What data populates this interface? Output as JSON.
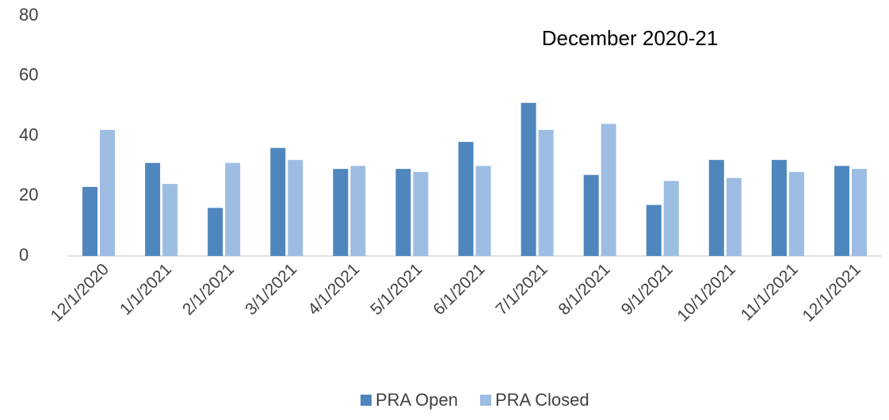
{
  "chart_data": {
    "type": "bar",
    "title": "December 2020-21",
    "categories": [
      "12/1/2020",
      "1/1/2021",
      "2/1/2021",
      "3/1/2021",
      "4/1/2021",
      "5/1/2021",
      "6/1/2021",
      "7/1/2021",
      "8/1/2021",
      "9/1/2021",
      "10/1/2021",
      "11/1/2021",
      "12/1/2021"
    ],
    "series": [
      {
        "name": "PRA Open",
        "color": "#4e86bd",
        "values": [
          23,
          31,
          16,
          36,
          29,
          29,
          38,
          51,
          27,
          17,
          32,
          32,
          30
        ]
      },
      {
        "name": "PRA Closed",
        "color": "#9dbde2",
        "values": [
          42,
          24,
          31,
          32,
          30,
          28,
          30,
          42,
          44,
          25,
          26,
          28,
          29
        ]
      }
    ],
    "ylim": [
      0,
      80
    ],
    "yticks": [
      0,
      20,
      40,
      60,
      80
    ],
    "grid": false,
    "legend": "bottom"
  }
}
